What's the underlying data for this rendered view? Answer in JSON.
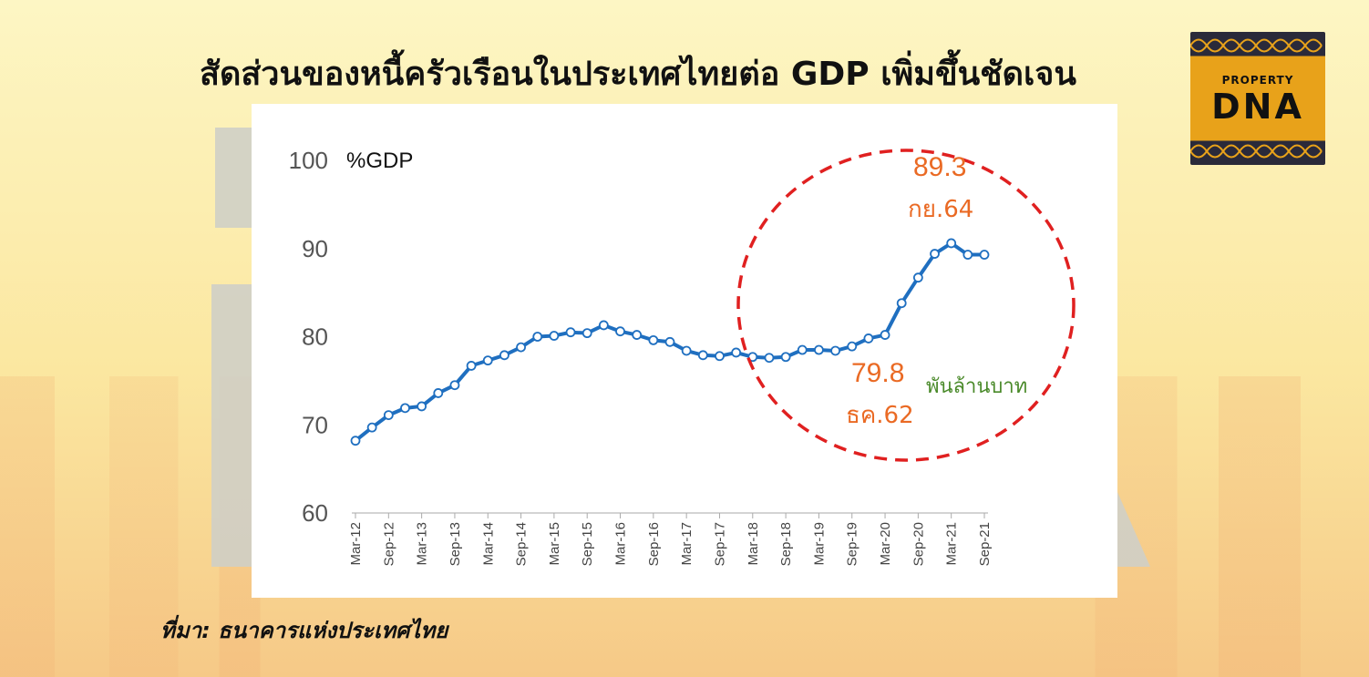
{
  "title": "สัดส่วนของหนี้ครัวเรือนในประเทศไทยต่อ GDP เพิ่มขึ้นชัดเจน",
  "logo": {
    "top_text": "PROPERTY",
    "main_text": "DNA"
  },
  "source": "ที่มา: ธนาคารแห่งประเทศไทย",
  "chart_data": {
    "type": "line",
    "unit_label": "%GDP",
    "ylim": [
      60,
      100
    ],
    "yticks": [
      60,
      70,
      80,
      90,
      100
    ],
    "xticks": [
      "Mar-12",
      "Sep-12",
      "Mar-13",
      "Sep-13",
      "Mar-14",
      "Sep-14",
      "Mar-15",
      "Sep-15",
      "Mar-16",
      "Sep-16",
      "Mar-17",
      "Sep-17",
      "Mar-18",
      "Sep-18",
      "Mar-19",
      "Sep-19",
      "Mar-20",
      "Sep-20",
      "Mar-21",
      "Sep-21"
    ],
    "x": [
      "Mar-12",
      "Jun-12",
      "Sep-12",
      "Dec-12",
      "Mar-13",
      "Jun-13",
      "Sep-13",
      "Dec-13",
      "Mar-14",
      "Jun-14",
      "Sep-14",
      "Dec-14",
      "Mar-15",
      "Jun-15",
      "Sep-15",
      "Dec-15",
      "Mar-16",
      "Jun-16",
      "Sep-16",
      "Dec-16",
      "Mar-17",
      "Jun-17",
      "Sep-17",
      "Dec-17",
      "Mar-18",
      "Jun-18",
      "Sep-18",
      "Dec-18",
      "Mar-19",
      "Jun-19",
      "Sep-19",
      "Dec-19",
      "Mar-20",
      "Jun-20",
      "Sep-20",
      "Dec-20",
      "Mar-21",
      "Jun-21",
      "Sep-21"
    ],
    "values": [
      68.2,
      69.7,
      71.1,
      71.9,
      72.1,
      73.6,
      74.5,
      76.7,
      77.3,
      77.9,
      78.8,
      80.0,
      80.1,
      80.5,
      80.4,
      81.3,
      80.6,
      80.2,
      79.6,
      79.4,
      78.4,
      77.9,
      77.8,
      78.2,
      77.7,
      77.6,
      77.7,
      78.5,
      78.5,
      78.4,
      78.9,
      79.8,
      80.2,
      83.8,
      86.7,
      89.4,
      90.6,
      89.3,
      89.3
    ],
    "annotations": [
      {
        "value": "89.3",
        "label": "กย.64",
        "color": "#ea6a24"
      },
      {
        "value": "79.8",
        "label": "ธค.62",
        "color": "#ea6a24"
      },
      {
        "text": "พันล้านบาท",
        "color": "#4a8a2a"
      }
    ],
    "line_color": "#1f6fc0",
    "circle_color": "#e02020",
    "grid": false
  }
}
